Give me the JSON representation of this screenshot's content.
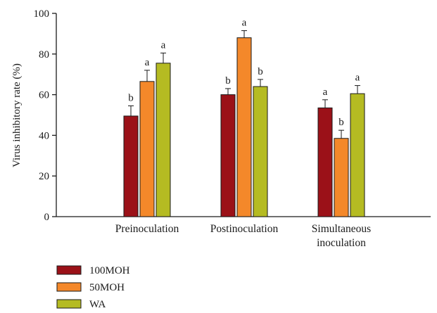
{
  "chart_data": {
    "type": "bar",
    "title": "",
    "xlabel": "",
    "ylabel": "Virus inhibitory rate (%)",
    "ylim": [
      0,
      100
    ],
    "yticks": [
      0,
      20,
      40,
      60,
      80,
      100
    ],
    "grid": false,
    "legend_position": "bottom-left",
    "categories": [
      {
        "lines": [
          "Preinoculation"
        ]
      },
      {
        "lines": [
          "Postinoculation"
        ]
      },
      {
        "lines": [
          "Simultaneous",
          "inoculation"
        ]
      }
    ],
    "series": [
      {
        "name": "100MOH",
        "color": "#9b1118",
        "values": [
          49.5,
          60.0,
          53.5
        ],
        "errors": [
          5.0,
          3.0,
          4.0
        ],
        "labels": [
          "b",
          "b",
          "a"
        ]
      },
      {
        "name": "50MOH",
        "color": "#f4882a",
        "values": [
          66.5,
          88.0,
          38.5
        ],
        "errors": [
          5.5,
          3.5,
          4.0
        ],
        "labels": [
          "a",
          "a",
          "b"
        ]
      },
      {
        "name": "WA",
        "color": "#b5bb22",
        "values": [
          75.5,
          64.0,
          60.5
        ],
        "errors": [
          5.0,
          3.5,
          4.0
        ],
        "labels": [
          "a",
          "b",
          "a"
        ]
      }
    ]
  }
}
